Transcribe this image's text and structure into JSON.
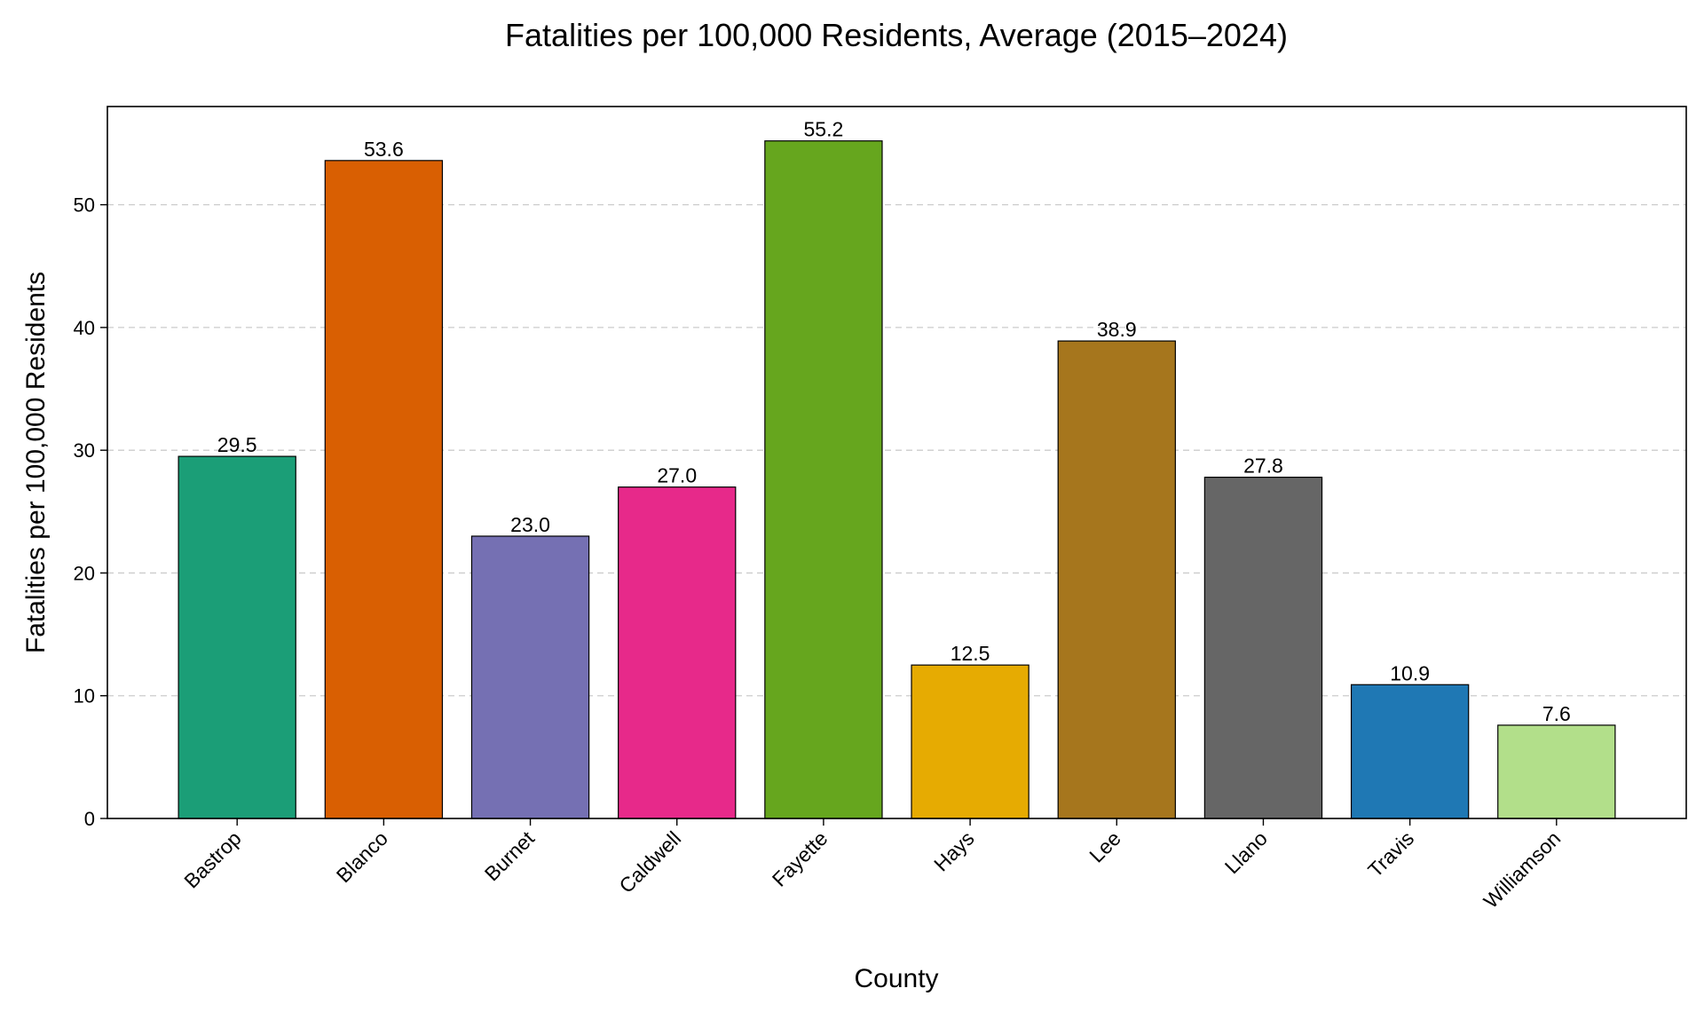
{
  "chart_data": {
    "type": "bar",
    "title": "Fatalities per 100,000 Residents, Average (2015–2024)",
    "xlabel": "County",
    "ylabel": "Fatalities per 100,000 Residents",
    "categories": [
      "Bastrop",
      "Blanco",
      "Burnet",
      "Caldwell",
      "Fayette",
      "Hays",
      "Lee",
      "Llano",
      "Travis",
      "Williamson"
    ],
    "values": [
      29.5,
      53.6,
      23.0,
      27.0,
      55.2,
      12.5,
      38.9,
      27.8,
      10.9,
      7.6
    ],
    "value_labels": [
      "29.5",
      "53.6",
      "23.0",
      "27.0",
      "55.2",
      "12.5",
      "38.9",
      "27.8",
      "10.9",
      "7.6"
    ],
    "colors": [
      "#1b9e77",
      "#d95f02",
      "#7570b3",
      "#e7298a",
      "#66a61e",
      "#e6ab02",
      "#a6761d",
      "#666666",
      "#1f78b4",
      "#b2df8a"
    ],
    "ylim": [
      0,
      58
    ],
    "yticks": [
      0,
      10,
      20,
      30,
      40,
      50
    ],
    "grid": "y-dashed",
    "legend": "none"
  }
}
